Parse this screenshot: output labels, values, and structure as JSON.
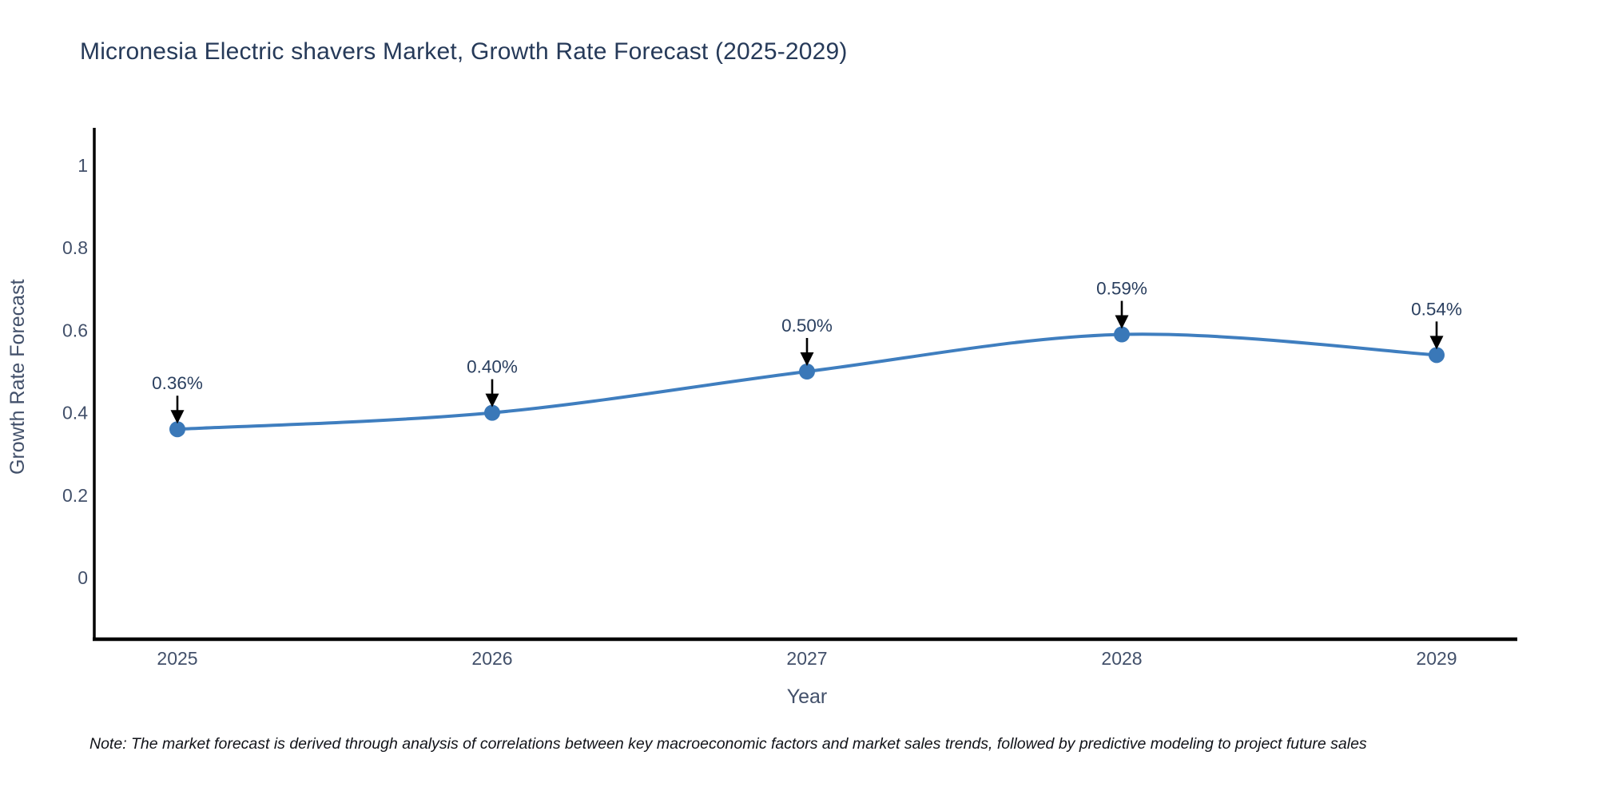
{
  "title": "Micronesia Electric shavers Market, Growth Rate Forecast (2025-2029)",
  "note": "Note: The market forecast is derived through analysis of correlations between key macroeconomic factors and market sales trends, followed by predictive modeling to project future sales",
  "chart_data": {
    "type": "line",
    "title": "Micronesia Electric shavers Market, Growth Rate Forecast (2025-2029)",
    "xlabel": "Year",
    "ylabel": "Growth Rate Forecast",
    "x": [
      2025,
      2026,
      2027,
      2028,
      2029
    ],
    "x_tick_labels": [
      "2025",
      "2026",
      "2027",
      "2028",
      "2029"
    ],
    "values": [
      0.36,
      0.4,
      0.5,
      0.59,
      0.54
    ],
    "point_labels": [
      "0.36%",
      "0.40%",
      "0.50%",
      "0.59%",
      "0.54%"
    ],
    "y_ticks": [
      0,
      0.2,
      0.4,
      0.6,
      0.8,
      1
    ],
    "y_tick_labels": [
      "0",
      "0.2",
      "0.4",
      "0.6",
      "0.8",
      "1"
    ],
    "ylim": [
      -0.16,
      1.09
    ],
    "grid": false,
    "legend_position": "none",
    "line_shape": "spline",
    "annotation_style": "value label above point with downward black arrow",
    "colors": {
      "line": "#3f7ebf",
      "marker": "#3a78b8",
      "arrow": "#000000",
      "axis": "#000000",
      "title_text": "#263a59",
      "tick_text": "#42506a",
      "annotation_text": "#2a3f5f",
      "background": "#ffffff"
    }
  }
}
